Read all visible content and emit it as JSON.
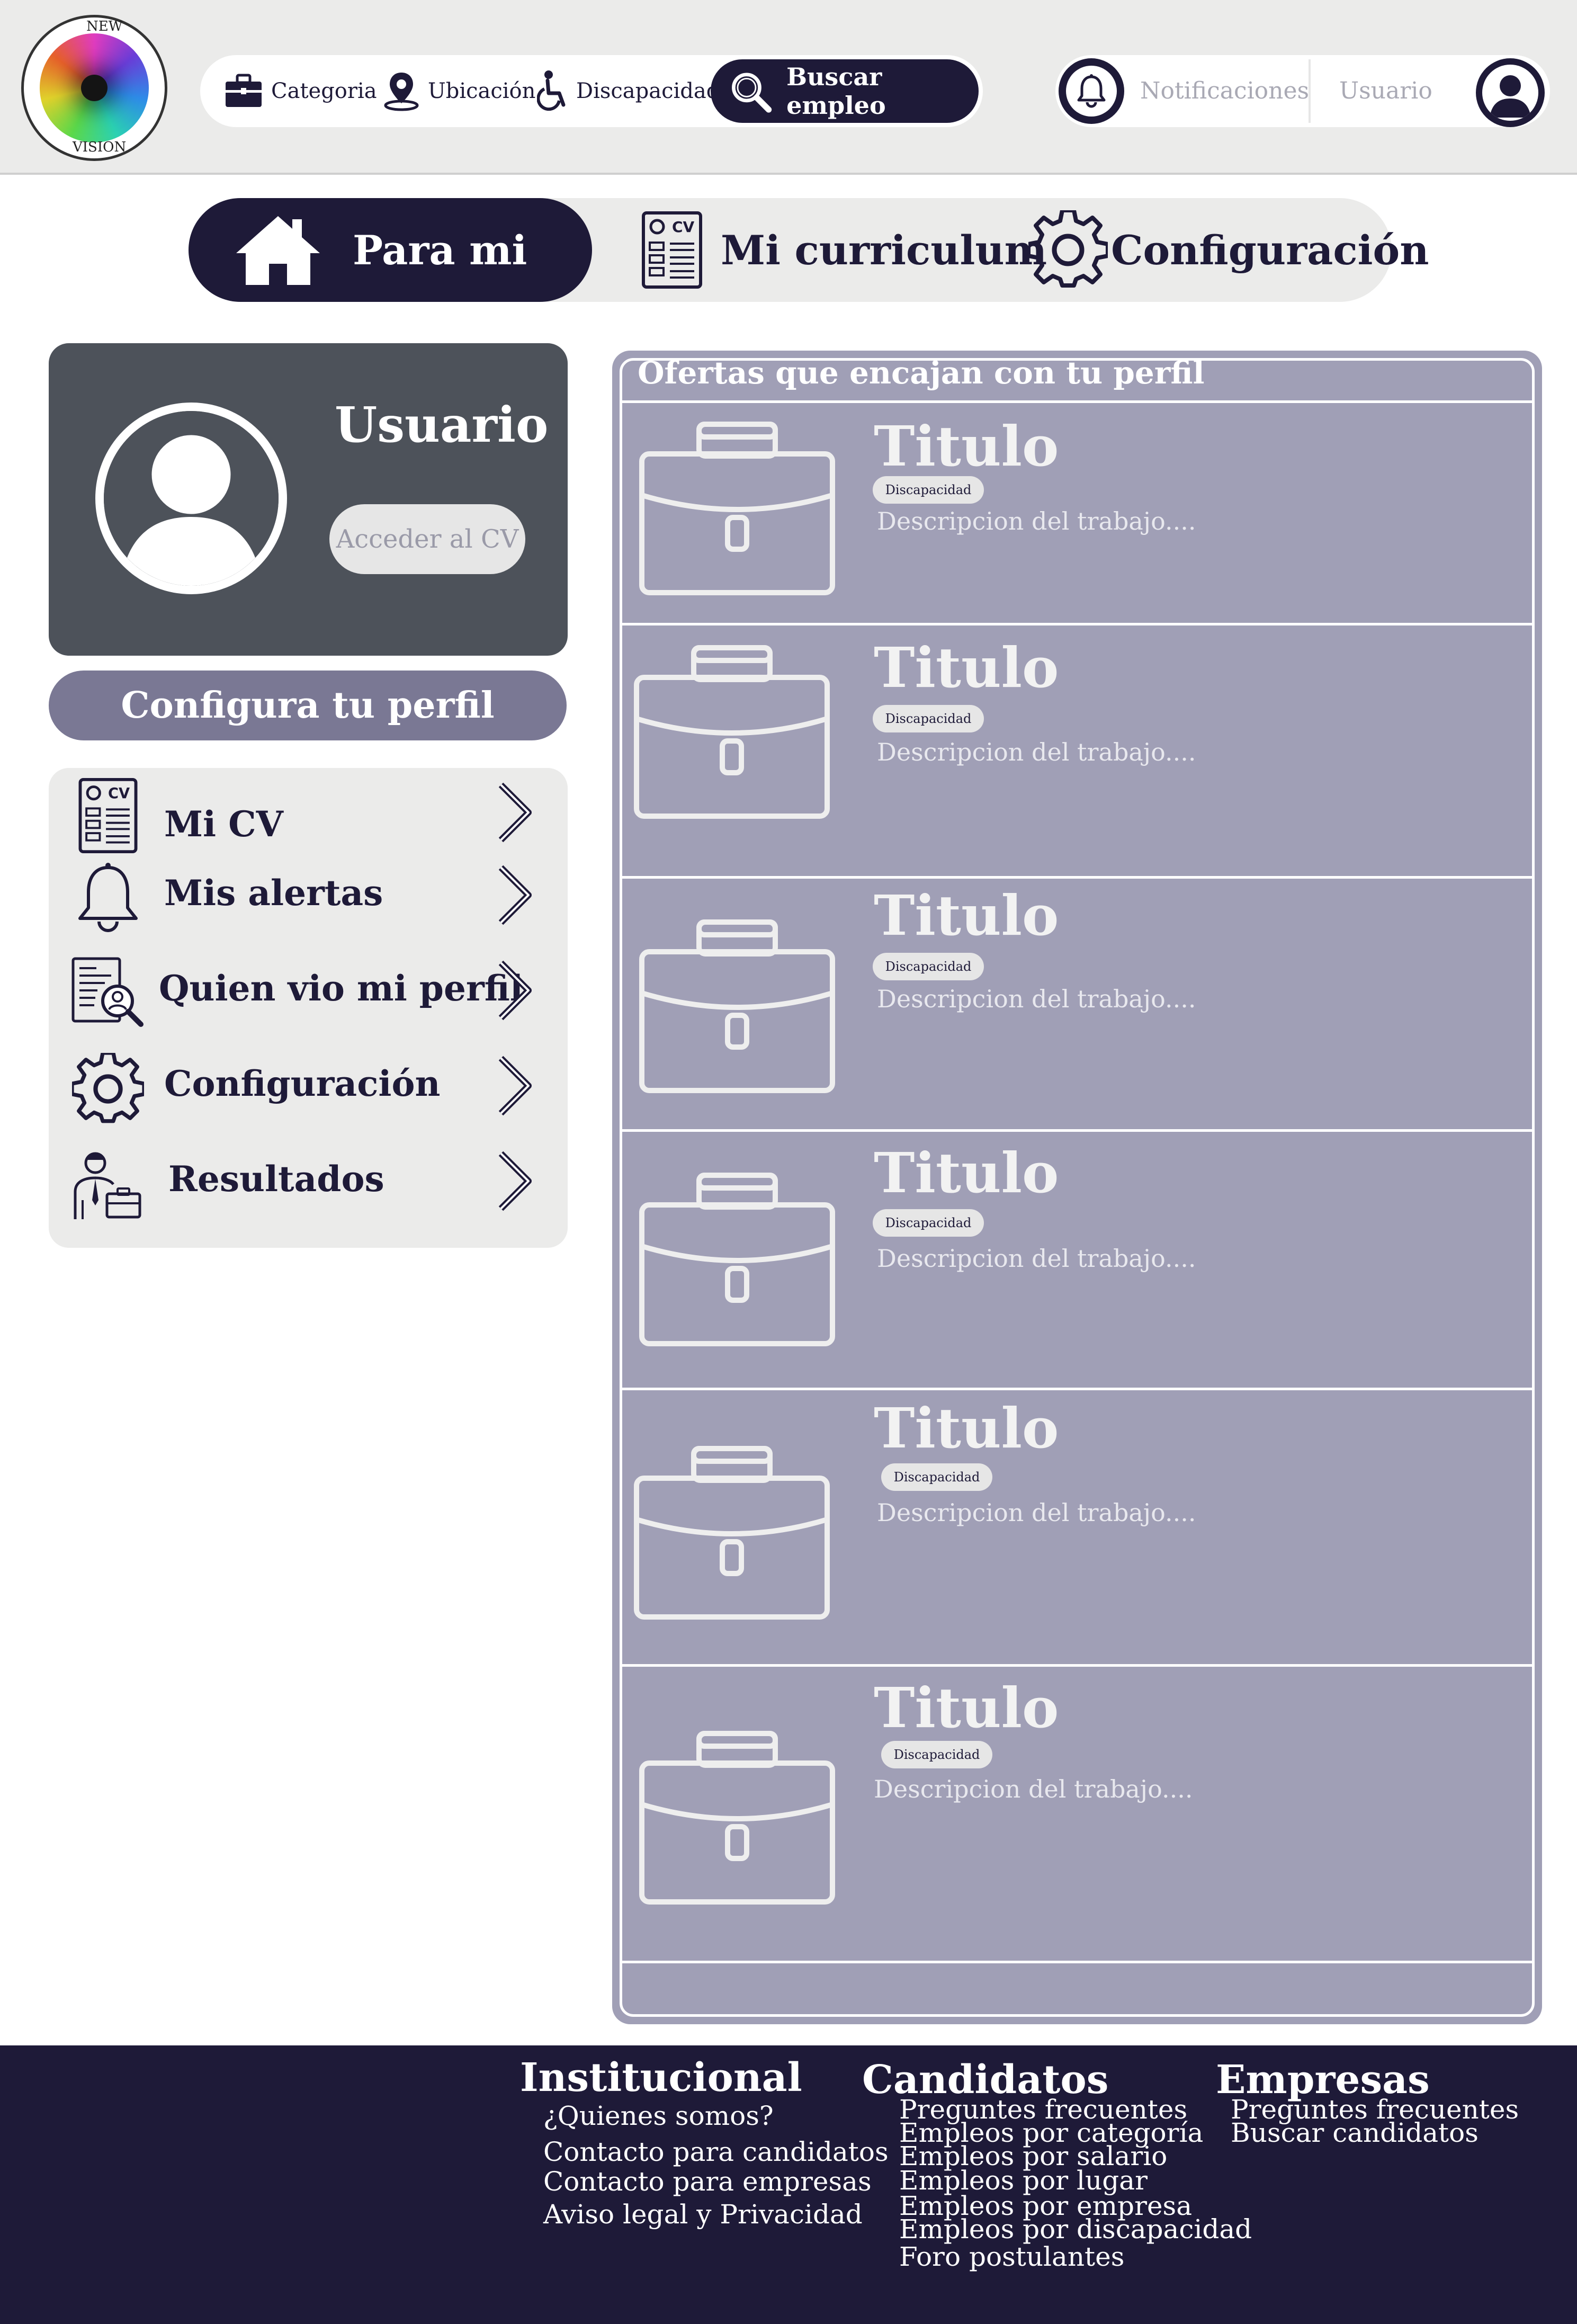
{
  "header": {
    "logo": {
      "letters_top": "NEW",
      "letters_bottom": "VISION"
    },
    "search": {
      "category_label": "Categoria",
      "location_label": "Ubicación",
      "disability_label": "Discapacidad",
      "search_button_label": "Buscar empleo"
    },
    "notifications_label": "Notificaciones",
    "user_label": "Usuario"
  },
  "tabs": [
    {
      "label": "Para mi",
      "icon": "home-icon",
      "active": true
    },
    {
      "label": "Mi curriculum",
      "icon": "cv-document-icon",
      "active": false
    },
    {
      "label": "Configuración",
      "icon": "gear-icon",
      "active": false
    }
  ],
  "profile": {
    "name": "Usuario",
    "cv_button_label": "Acceder al CV",
    "config_button_label": "Configura tu perfil"
  },
  "side_menu": [
    {
      "label": "Mi CV",
      "icon": "cv-document-icon"
    },
    {
      "label": "Mis alertas",
      "icon": "bell-icon"
    },
    {
      "label": "Quien vio mi perfil",
      "icon": "profile-search-icon"
    },
    {
      "label": "Configuración",
      "icon": "gear-icon"
    },
    {
      "label": "Resultados",
      "icon": "businessman-icon"
    }
  ],
  "offers": {
    "title": "Ofertas que encajan con tu perfil",
    "items": [
      {
        "title": "Titulo",
        "badge": "Discapacidad",
        "description": "Descripcion del trabajo...."
      },
      {
        "title": "Titulo",
        "badge": "Discapacidad",
        "description": "Descripcion del trabajo...."
      },
      {
        "title": "Titulo",
        "badge": "Discapacidad",
        "description": "Descripcion del trabajo...."
      },
      {
        "title": "Titulo",
        "badge": "Discapacidad",
        "description": "Descripcion del trabajo...."
      },
      {
        "title": "Titulo",
        "badge": "Discapacidad",
        "description": "Descripcion del trabajo...."
      },
      {
        "title": "Titulo",
        "badge": "Discapacidad",
        "description": "Descripcion del trabajo...."
      }
    ]
  },
  "footer": {
    "institucional": {
      "heading": "Institucional",
      "links": [
        "¿Quienes somos?",
        "Contacto para candidatos",
        "Contacto para  empresas",
        "Aviso legal y Privacidad"
      ]
    },
    "candidatos": {
      "heading": "Candidatos",
      "links": [
        "Preguntes frecuentes",
        "Empleos por categoría",
        "Empleos por salario",
        "Empleos por lugar",
        "Empleos por empresa",
        "Empleos por discapacidad",
        "Foro postulantes"
      ]
    },
    "empresas": {
      "heading": "Empresas",
      "links": [
        "Preguntes frecuentes",
        "Buscar candidatos"
      ]
    }
  },
  "colors": {
    "navy": "#1e1a38",
    "header_bg": "#ebebea",
    "card_gray": "#4d525a",
    "lavender": "#a09fb6",
    "config_purple": "#7a7894"
  }
}
